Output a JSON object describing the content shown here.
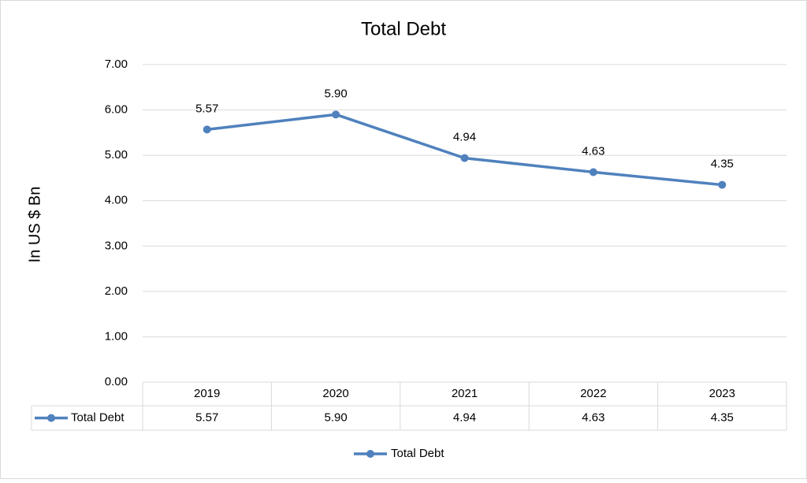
{
  "chart_data": {
    "type": "line",
    "title": "Total Debt",
    "y_label": "In US $ Bn",
    "categories": [
      "2019",
      "2020",
      "2021",
      "2022",
      "2023"
    ],
    "series": [
      {
        "name": "Total Debt",
        "color": "#4f81bd",
        "values": [
          5.57,
          5.9,
          4.94,
          4.63,
          4.35
        ],
        "value_labels": [
          "5.57",
          "5.90",
          "4.94",
          "4.63",
          "4.35"
        ]
      }
    ],
    "ylim": [
      0,
      7
    ],
    "yticks": [
      {
        "value": 0,
        "label": "0.00"
      },
      {
        "value": 1,
        "label": "1.00"
      },
      {
        "value": 2,
        "label": "2.00"
      },
      {
        "value": 3,
        "label": "3.00"
      },
      {
        "value": 4,
        "label": "4.00"
      },
      {
        "value": 5,
        "label": "5.00"
      },
      {
        "value": 6,
        "label": "6.00"
      },
      {
        "value": 7,
        "label": "7.00"
      }
    ],
    "grid": true,
    "legend": "bottom"
  }
}
